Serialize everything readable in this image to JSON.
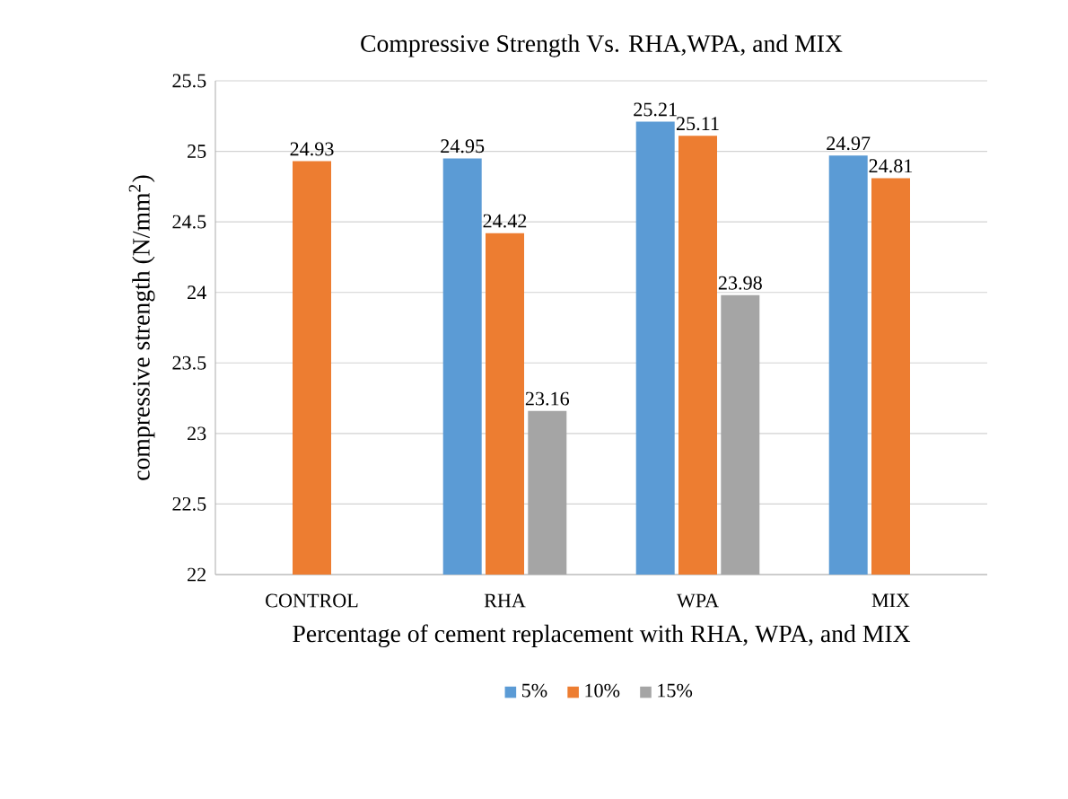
{
  "chart_data": {
    "type": "bar",
    "title": "Compressive Strength Vs. RHA,WPA, and MIX",
    "xlabel": "Percentage of cement replacement with RHA, WPA, and MIX",
    "ylabel": "compressive strength (N/mm$^{2}$)",
    "categories": [
      "CONTROL",
      "RHA",
      "WPA",
      "MIX"
    ],
    "series": [
      {
        "name": "5%",
        "color": "#5b9bd5",
        "values": [
          null,
          24.95,
          25.21,
          24.97
        ]
      },
      {
        "name": "10%",
        "color": "#ed7d31",
        "values": [
          24.93,
          24.42,
          25.11,
          24.81
        ]
      },
      {
        "name": "15%",
        "color": "#a5a5a5",
        "values": [
          null,
          23.16,
          23.98,
          null
        ]
      }
    ],
    "ylim": [
      22,
      25.5
    ],
    "yticks": [
      22,
      22.5,
      23,
      23.5,
      24,
      24.5,
      25,
      25.5
    ],
    "grid": "y",
    "legend": "bottom",
    "data_labels": true
  }
}
